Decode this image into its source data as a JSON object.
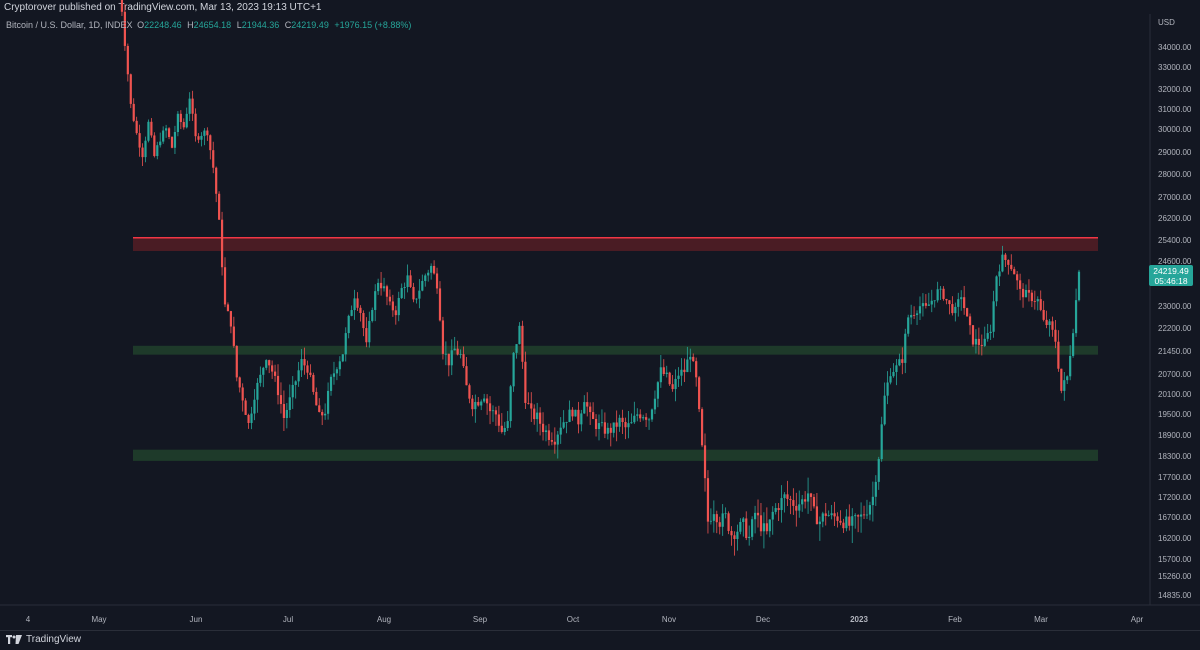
{
  "header": {
    "published": "Cryptorover published on TradingView.com, Mar 13, 2023 19:13 UTC+1"
  },
  "legend": {
    "symbol": "Bitcoin / U.S. Dollar, 1D, INDEX",
    "open_label": "O",
    "open": "22248.46",
    "high_label": "H",
    "high": "24654.18",
    "low_label": "L",
    "low": "21944.36",
    "close_label": "C",
    "close": "24219.49",
    "change": "+1976.15 (+8.88%)"
  },
  "price_tag": {
    "price": "24219.49",
    "countdown": "05:46:18"
  },
  "footer": {
    "brand": "TradingView"
  },
  "colors": {
    "background": "#131722",
    "up": "#26a69a",
    "down": "#ef5350",
    "resistance_zone": "#f23645",
    "support_zone": "#1e3a2a"
  },
  "chart_data": {
    "type": "candlestick",
    "currency_label": "USD",
    "y_ticks": [
      "34000.00",
      "33000.00",
      "32000.00",
      "31000.00",
      "30000.00",
      "29000.00",
      "28000.00",
      "27000.00",
      "26200.00",
      "25400.00",
      "24600.00",
      "23000.00",
      "22200.00",
      "21450.00",
      "20700.00",
      "20100.00",
      "19500.00",
      "18900.00",
      "18300.00",
      "17700.00",
      "17200.00",
      "16700.00",
      "16200.00",
      "15700.00",
      "15260.00",
      "14835.00"
    ],
    "x_ticks": [
      "4",
      "May",
      "Jun",
      "Jul",
      "Aug",
      "Sep",
      "Oct",
      "Nov",
      "Dec",
      "2023",
      "Feb",
      "Mar",
      "Apr"
    ],
    "zones": [
      {
        "kind": "resistance",
        "low": 24980,
        "high": 25480
      },
      {
        "kind": "support",
        "low": 21330,
        "high": 21620
      },
      {
        "kind": "support",
        "low": 18160,
        "high": 18480
      }
    ],
    "path": [
      [
        0,
        37500
      ],
      [
        2,
        34200
      ],
      [
        4,
        31200
      ],
      [
        6,
        29800
      ],
      [
        8,
        28900
      ],
      [
        10,
        30300
      ],
      [
        12,
        28800
      ],
      [
        14,
        29600
      ],
      [
        16,
        30000
      ],
      [
        18,
        29200
      ],
      [
        20,
        30600
      ],
      [
        22,
        30100
      ],
      [
        24,
        31600
      ],
      [
        26,
        29600
      ],
      [
        28,
        29800
      ],
      [
        30,
        29900
      ],
      [
        32,
        28300
      ],
      [
        34,
        26000
      ],
      [
        36,
        23000
      ],
      [
        38,
        22400
      ],
      [
        40,
        20600
      ],
      [
        42,
        20000
      ],
      [
        44,
        19200
      ],
      [
        46,
        20100
      ],
      [
        48,
        20600
      ],
      [
        50,
        21300
      ],
      [
        52,
        20800
      ],
      [
        54,
        20200
      ],
      [
        56,
        19400
      ],
      [
        58,
        19900
      ],
      [
        60,
        20500
      ],
      [
        62,
        21100
      ],
      [
        64,
        20900
      ],
      [
        66,
        20100
      ],
      [
        68,
        19400
      ],
      [
        70,
        19600
      ],
      [
        72,
        20500
      ],
      [
        74,
        21000
      ],
      [
        76,
        21400
      ],
      [
        78,
        22500
      ],
      [
        80,
        23400
      ],
      [
        82,
        22800
      ],
      [
        84,
        21600
      ],
      [
        86,
        23000
      ],
      [
        88,
        23900
      ],
      [
        90,
        23600
      ],
      [
        92,
        23000
      ],
      [
        94,
        22800
      ],
      [
        96,
        23600
      ],
      [
        98,
        24000
      ],
      [
        100,
        23100
      ],
      [
        102,
        23600
      ],
      [
        104,
        24100
      ],
      [
        106,
        24400
      ],
      [
        108,
        23800
      ],
      [
        110,
        21500
      ],
      [
        112,
        21100
      ],
      [
        114,
        21500
      ],
      [
        116,
        21300
      ],
      [
        118,
        20300
      ],
      [
        120,
        19800
      ],
      [
        122,
        19900
      ],
      [
        124,
        20100
      ],
      [
        126,
        19600
      ],
      [
        128,
        19500
      ],
      [
        130,
        19000
      ],
      [
        132,
        19200
      ],
      [
        134,
        21300
      ],
      [
        136,
        22200
      ],
      [
        138,
        20000
      ],
      [
        140,
        19500
      ],
      [
        142,
        19400
      ],
      [
        144,
        19100
      ],
      [
        146,
        18900
      ],
      [
        148,
        18800
      ],
      [
        150,
        19200
      ],
      [
        152,
        19400
      ],
      [
        154,
        19600
      ],
      [
        156,
        19300
      ],
      [
        158,
        20000
      ],
      [
        160,
        19400
      ],
      [
        162,
        19200
      ],
      [
        164,
        19100
      ],
      [
        166,
        19000
      ],
      [
        168,
        19100
      ],
      [
        170,
        19300
      ],
      [
        172,
        19100
      ],
      [
        174,
        19200
      ],
      [
        176,
        19500
      ],
      [
        178,
        19500
      ],
      [
        180,
        19400
      ],
      [
        182,
        20100
      ],
      [
        184,
        20800
      ],
      [
        186,
        20600
      ],
      [
        188,
        20200
      ],
      [
        190,
        20700
      ],
      [
        192,
        20800
      ],
      [
        194,
        21400
      ],
      [
        196,
        20500
      ],
      [
        198,
        18500
      ],
      [
        200,
        16600
      ],
      [
        202,
        16900
      ],
      [
        204,
        16600
      ],
      [
        206,
        16700
      ],
      [
        208,
        16300
      ],
      [
        210,
        16400
      ],
      [
        212,
        16500
      ],
      [
        214,
        16200
      ],
      [
        216,
        16800
      ],
      [
        218,
        16500
      ],
      [
        220,
        16300
      ],
      [
        222,
        16800
      ],
      [
        224,
        17000
      ],
      [
        226,
        17200
      ],
      [
        228,
        17100
      ],
      [
        230,
        17000
      ],
      [
        232,
        17100
      ],
      [
        234,
        17300
      ],
      [
        236,
        16800
      ],
      [
        238,
        16600
      ],
      [
        240,
        16800
      ],
      [
        242,
        16700
      ],
      [
        244,
        16700
      ],
      [
        246,
        16600
      ],
      [
        248,
        16500
      ],
      [
        250,
        16600
      ],
      [
        252,
        16700
      ],
      [
        254,
        16900
      ],
      [
        256,
        17200
      ],
      [
        258,
        18300
      ],
      [
        260,
        20000
      ],
      [
        262,
        20800
      ],
      [
        264,
        20900
      ],
      [
        266,
        21200
      ],
      [
        268,
        22600
      ],
      [
        270,
        22800
      ],
      [
        272,
        23000
      ],
      [
        274,
        22900
      ],
      [
        276,
        23200
      ],
      [
        278,
        23500
      ],
      [
        280,
        23400
      ],
      [
        282,
        23000
      ],
      [
        284,
        22800
      ],
      [
        286,
        23400
      ],
      [
        288,
        22500
      ],
      [
        290,
        21800
      ],
      [
        292,
        21700
      ],
      [
        294,
        21700
      ],
      [
        296,
        22200
      ],
      [
        298,
        24100
      ],
      [
        300,
        24700
      ],
      [
        302,
        24600
      ],
      [
        304,
        24200
      ],
      [
        306,
        23500
      ],
      [
        308,
        23400
      ],
      [
        310,
        23300
      ],
      [
        312,
        23200
      ],
      [
        314,
        22400
      ],
      [
        316,
        22300
      ],
      [
        318,
        21800
      ],
      [
        320,
        20200
      ],
      [
        322,
        20600
      ],
      [
        324,
        22200
      ],
      [
        326,
        24200
      ]
    ],
    "last_price": 24219.49
  }
}
